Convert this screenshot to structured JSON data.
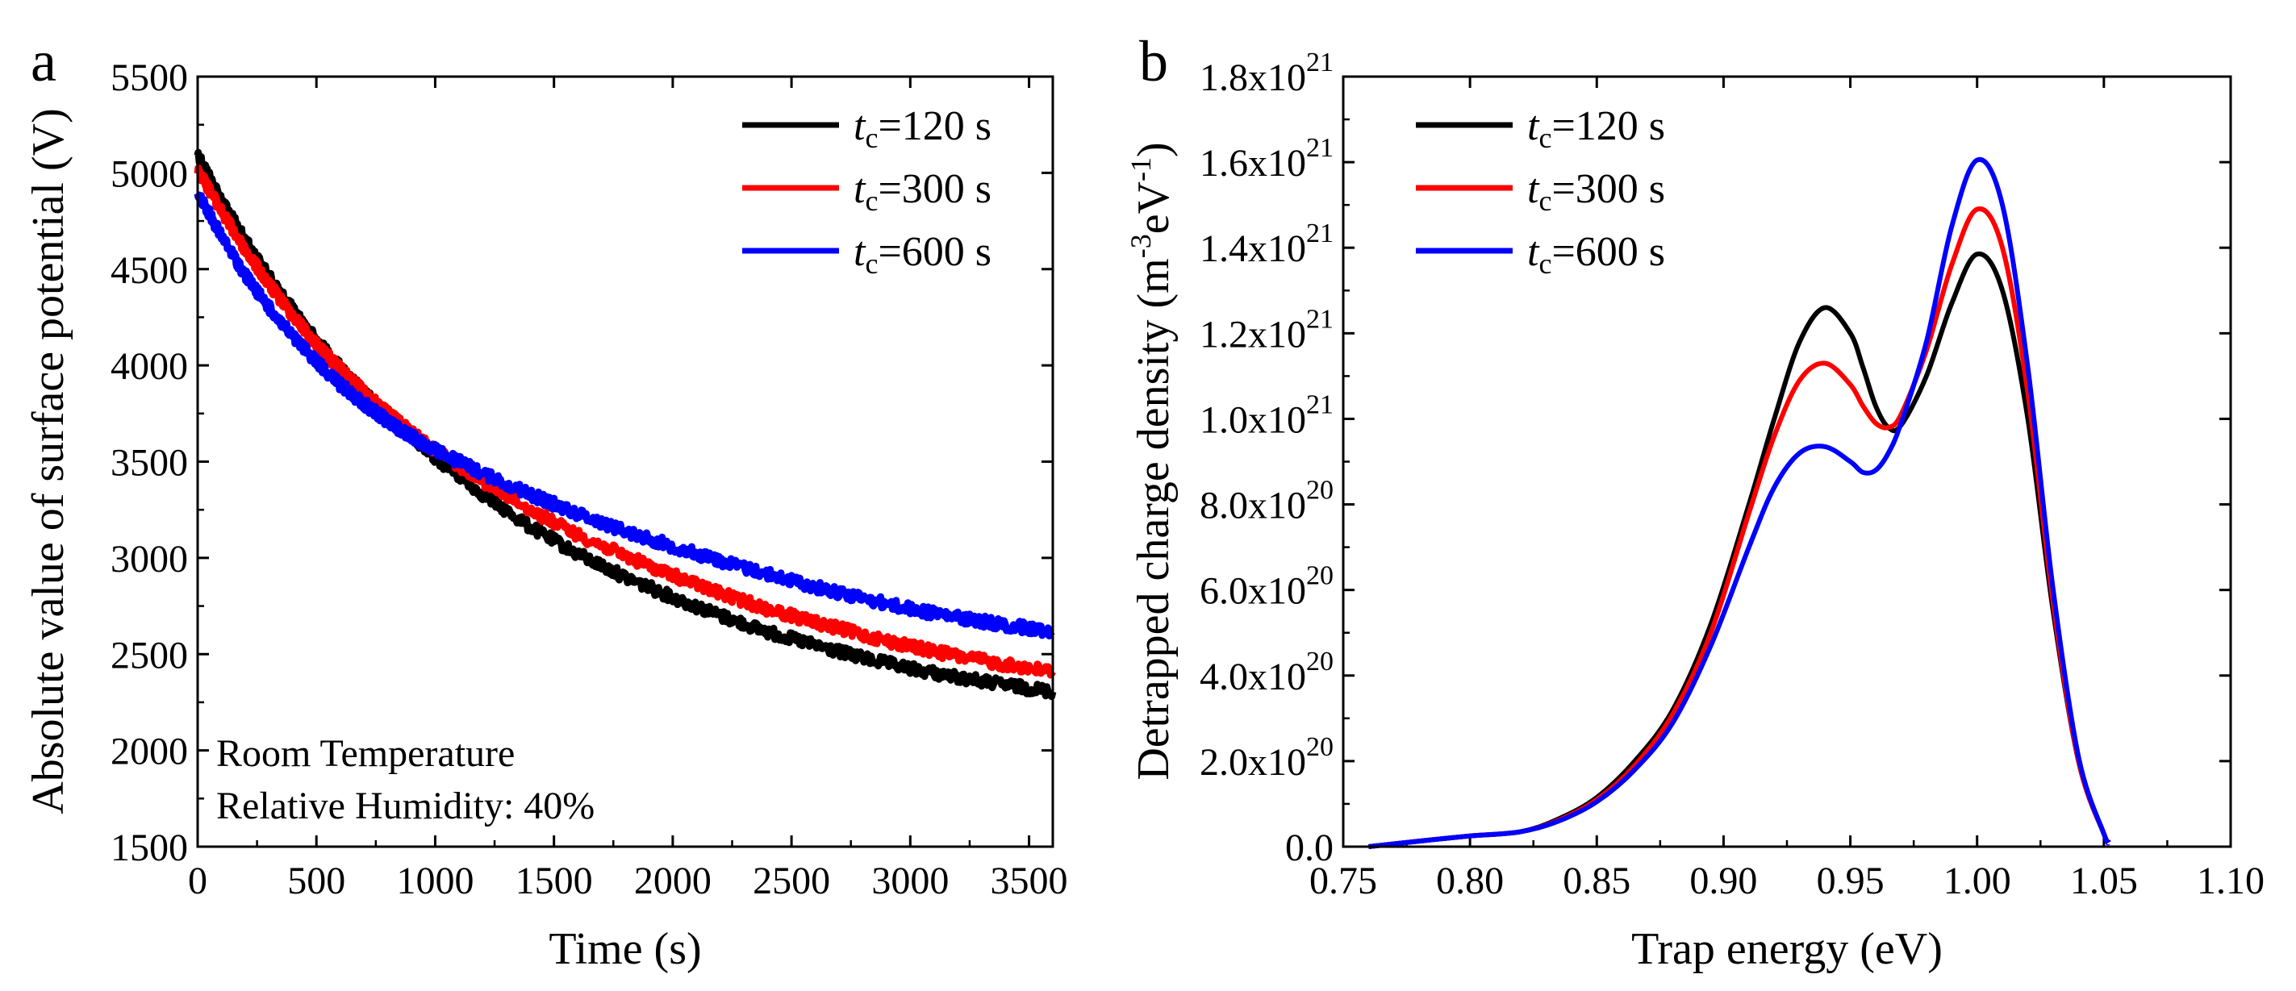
{
  "chart_data": [
    {
      "type": "line",
      "panel_label": "a",
      "title": "",
      "xlabel": "Time (s)",
      "ylabel": "Absolute value of surface potential (V)",
      "xlim": [
        0,
        3600
      ],
      "ylim": [
        1500,
        5500
      ],
      "x_ticks": [
        0,
        500,
        1000,
        1500,
        2000,
        2500,
        3000,
        3500
      ],
      "y_ticks": [
        1500,
        2000,
        2500,
        3000,
        3500,
        4000,
        4500,
        5000,
        5500
      ],
      "legend_position": "top-right",
      "annotations": [
        "Room Temperature",
        "Relative Humidity: 40%"
      ],
      "x": [
        0,
        100,
        200,
        300,
        400,
        500,
        600,
        700,
        800,
        900,
        1000,
        1200,
        1400,
        1600,
        1800,
        2000,
        2200,
        2400,
        2600,
        2800,
        3000,
        3200,
        3400,
        3600
      ],
      "series": [
        {
          "name": "tc=120 s",
          "label_main": "t",
          "label_sub": "c",
          "label_rest": "=120 s",
          "color": "#000000",
          "values": [
            5100,
            4860,
            4650,
            4460,
            4290,
            4130,
            3990,
            3860,
            3740,
            3630,
            3520,
            3330,
            3160,
            3020,
            2900,
            2795,
            2700,
            2615,
            2545,
            2480,
            2425,
            2380,
            2340,
            2305
          ]
        },
        {
          "name": "tc=300 s",
          "label_main": "t",
          "label_sub": "c",
          "label_rest": "=300 s",
          "color": "#ff0000",
          "values": [
            5020,
            4800,
            4600,
            4420,
            4260,
            4110,
            3980,
            3860,
            3750,
            3650,
            3560,
            3400,
            3250,
            3120,
            3010,
            2910,
            2815,
            2735,
            2665,
            2600,
            2540,
            2490,
            2445,
            2410
          ]
        },
        {
          "name": "tc=600 s",
          "label_main": "t",
          "label_sub": "c",
          "label_rest": "=600 s",
          "color": "#0000ff",
          "values": [
            4900,
            4670,
            4470,
            4300,
            4150,
            4020,
            3900,
            3800,
            3710,
            3630,
            3560,
            3440,
            3330,
            3230,
            3140,
            3060,
            2985,
            2915,
            2850,
            2790,
            2735,
            2690,
            2650,
            2620
          ]
        }
      ]
    },
    {
      "type": "line",
      "panel_label": "b",
      "title": "",
      "xlabel": "Trap energy (eV)",
      "ylabel": "Detrapped charge density (m⁻³eV⁻¹)",
      "xlim": [
        0.75,
        1.1
      ],
      "ylim": [
        0,
        1.8e+21
      ],
      "x_ticks": [
        "0.75",
        "0.80",
        "0.85",
        "0.90",
        "0.95",
        "1.00",
        "1.05",
        "1.10"
      ],
      "y_ticks": [
        {
          "mantissa": "0.0",
          "exp": ""
        },
        {
          "mantissa": "2.0x10",
          "exp": "20"
        },
        {
          "mantissa": "4.0x10",
          "exp": "20"
        },
        {
          "mantissa": "6.0x10",
          "exp": "20"
        },
        {
          "mantissa": "8.0x10",
          "exp": "20"
        },
        {
          "mantissa": "1.0x10",
          "exp": "21"
        },
        {
          "mantissa": "1.2x10",
          "exp": "21"
        },
        {
          "mantissa": "1.4x10",
          "exp": "21"
        },
        {
          "mantissa": "1.6x10",
          "exp": "21"
        },
        {
          "mantissa": "1.8x10",
          "exp": "21"
        }
      ],
      "ylabel_parts": {
        "main": "Detrapped charge density (m",
        "exp1": "-3",
        "mid": "eV",
        "exp2": "-1",
        "end": ")"
      },
      "legend_position": "top-left",
      "x": [
        0.76,
        0.78,
        0.8,
        0.82,
        0.835,
        0.85,
        0.865,
        0.88,
        0.895,
        0.91,
        0.92,
        0.93,
        0.94,
        0.95,
        0.955,
        0.96,
        0.965,
        0.97,
        0.98,
        0.99,
        1.0,
        1.01,
        1.02,
        1.03,
        1.04,
        1.05,
        1.052
      ],
      "series": [
        {
          "name": "tc=120 s",
          "label_main": "t",
          "label_sub": "c",
          "label_rest": "=120 s",
          "color": "#000000",
          "values": [
            0.0,
            1.3e+19,
            2.5e+19,
            3.5e+19,
            6.5e+19,
            1.15e+20,
            2e+20,
            3.2e+20,
            5.2e+20,
            8e+20,
            1e+21,
            1.18e+21,
            1.26e+21,
            1.2e+21,
            1.12e+21,
            1.03e+21,
            9.8e+20,
            9.85e+20,
            1.1e+21,
            1.27e+21,
            1.385e+21,
            1.3e+21,
            1e+21,
            5.5e+20,
            2e+20,
            3e+19,
            1e+19
          ]
        },
        {
          "name": "tc=300 s",
          "label_main": "t",
          "label_sub": "c",
          "label_rest": "=300 s",
          "color": "#ff0000",
          "values": [
            0.0,
            1.3e+19,
            2.5e+19,
            3.5e+19,
            6.2e+19,
            1.1e+20,
            1.9e+20,
            3.1e+20,
            5e+20,
            7.8e+20,
            9.6e+20,
            1.09e+21,
            1.13e+21,
            1.08e+21,
            1.03e+21,
            9.9e+20,
            9.8e+20,
            1.01e+21,
            1.16e+21,
            1.36e+21,
            1.49e+21,
            1.4e+21,
            1.06e+21,
            5.7e+20,
            2e+20,
            3e+19,
            1e+19
          ]
        },
        {
          "name": "tc=600 s",
          "label_main": "t",
          "label_sub": "c",
          "label_rest": "=600 s",
          "color": "#0000ff",
          "values": [
            0.0,
            1.3e+19,
            2.5e+19,
            3.5e+19,
            6e+19,
            1.05e+20,
            1.8e+20,
            2.9e+20,
            4.7e+20,
            7e+20,
            8.4e+20,
            9.2e+20,
            9.35e+20,
            9e+20,
            8.75e+20,
            8.8e+20,
            9.2e+20,
            9.9e+20,
            1.18e+21,
            1.45e+21,
            1.605e+21,
            1.5e+21,
            1.12e+21,
            6e+20,
            2.1e+20,
            3e+19,
            1e+19
          ]
        }
      ]
    }
  ]
}
